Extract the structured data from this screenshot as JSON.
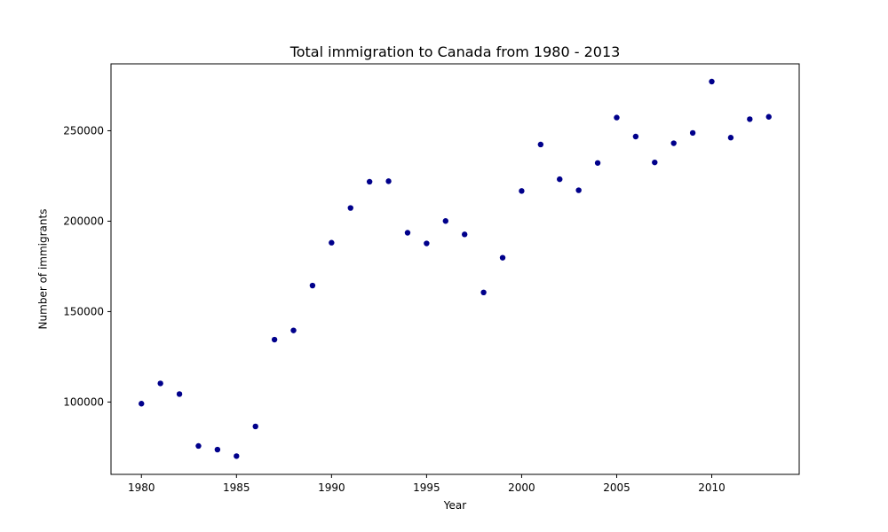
{
  "chart_data": {
    "type": "scatter",
    "title": "Total immigration to Canada from 1980 - 2013",
    "xlabel": "Year",
    "ylabel": "Number of immigrants",
    "xlim": [
      1978.4,
      2014.6
    ],
    "ylim": [
      60000,
      287000
    ],
    "x_ticks": [
      1980,
      1985,
      1990,
      1995,
      2000,
      2005,
      2010
    ],
    "y_ticks": [
      100000,
      150000,
      200000,
      250000
    ],
    "grid": false,
    "legend": null,
    "marker_color": "#00008b",
    "series": [
      {
        "x": [
          1980,
          1981,
          1982,
          1983,
          1984,
          1985,
          1986,
          1987,
          1988,
          1989,
          1990,
          1991,
          1992,
          1993,
          1994,
          1995,
          1996,
          1997,
          1998,
          1999,
          2000,
          2001,
          2002,
          2003,
          2004,
          2005,
          2006,
          2007,
          2008,
          2009,
          2010,
          2011,
          2012,
          2013
        ],
        "y": [
          99100,
          110300,
          104400,
          75700,
          73700,
          70100,
          86500,
          134500,
          139600,
          164400,
          188100,
          207300,
          221800,
          222100,
          193600,
          187700,
          200100,
          192700,
          160600,
          179800,
          216700,
          242400,
          223200,
          217100,
          232200,
          257300,
          246800,
          232500,
          243100,
          248800,
          277200,
          246200,
          256400,
          257700
        ]
      }
    ]
  }
}
